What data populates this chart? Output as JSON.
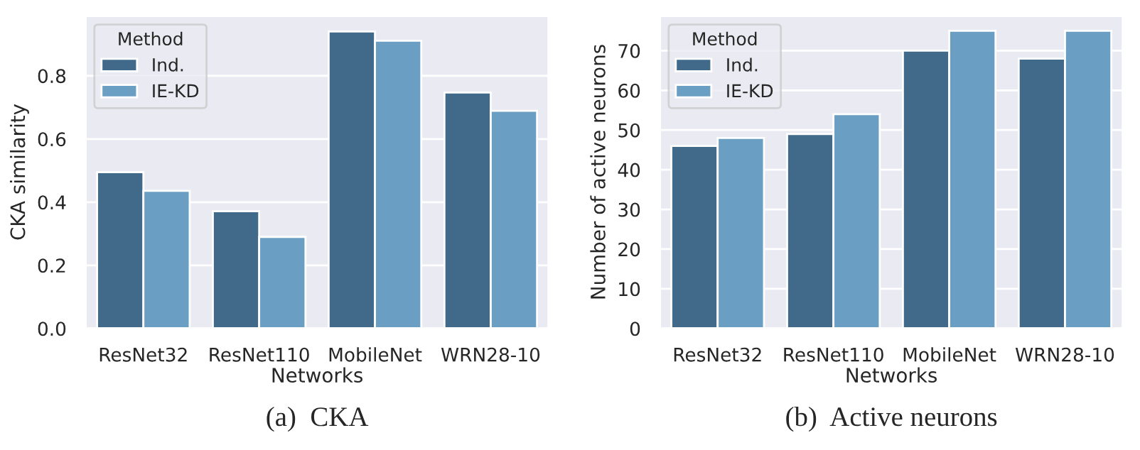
{
  "chart_data": [
    {
      "type": "bar",
      "title": "(a)  CKA",
      "xlabel": "Networks",
      "ylabel": "CKA similarity",
      "legend_title": "Method",
      "categories": [
        "ResNet32",
        "ResNet110",
        "MobileNet",
        "WRN28-10"
      ],
      "series": [
        {
          "name": "Ind.",
          "color": "#41698a",
          "values": [
            0.495,
            0.371,
            0.94,
            0.747
          ]
        },
        {
          "name": "IE-KD",
          "color": "#6a9ec3",
          "values": [
            0.436,
            0.29,
            0.911,
            0.689
          ]
        }
      ],
      "ylim": [
        0,
        0.99
      ],
      "yticks": [
        {
          "value": 0,
          "label": "0.0"
        },
        0.2,
        0.4,
        0.6,
        0.8
      ],
      "grid": "y",
      "legend": "top left"
    },
    {
      "type": "bar",
      "title": "(b)  Active neurons",
      "xlabel": "Networks",
      "ylabel": "Number of active neurons",
      "legend_title": "Method",
      "categories": [
        "ResNet32",
        "ResNet110",
        "MobileNet",
        "WRN28-10"
      ],
      "series": [
        {
          "name": "Ind.",
          "color": "#41698a",
          "values": [
            46,
            49,
            70,
            68
          ]
        },
        {
          "name": "IE-KD",
          "color": "#6a9ec3",
          "values": [
            48,
            54,
            75,
            75
          ]
        }
      ],
      "ylim": [
        0,
        78.8
      ],
      "yticks": [
        0,
        10,
        20,
        30,
        40,
        50,
        60,
        70
      ],
      "grid": "y",
      "legend": "top left"
    }
  ]
}
